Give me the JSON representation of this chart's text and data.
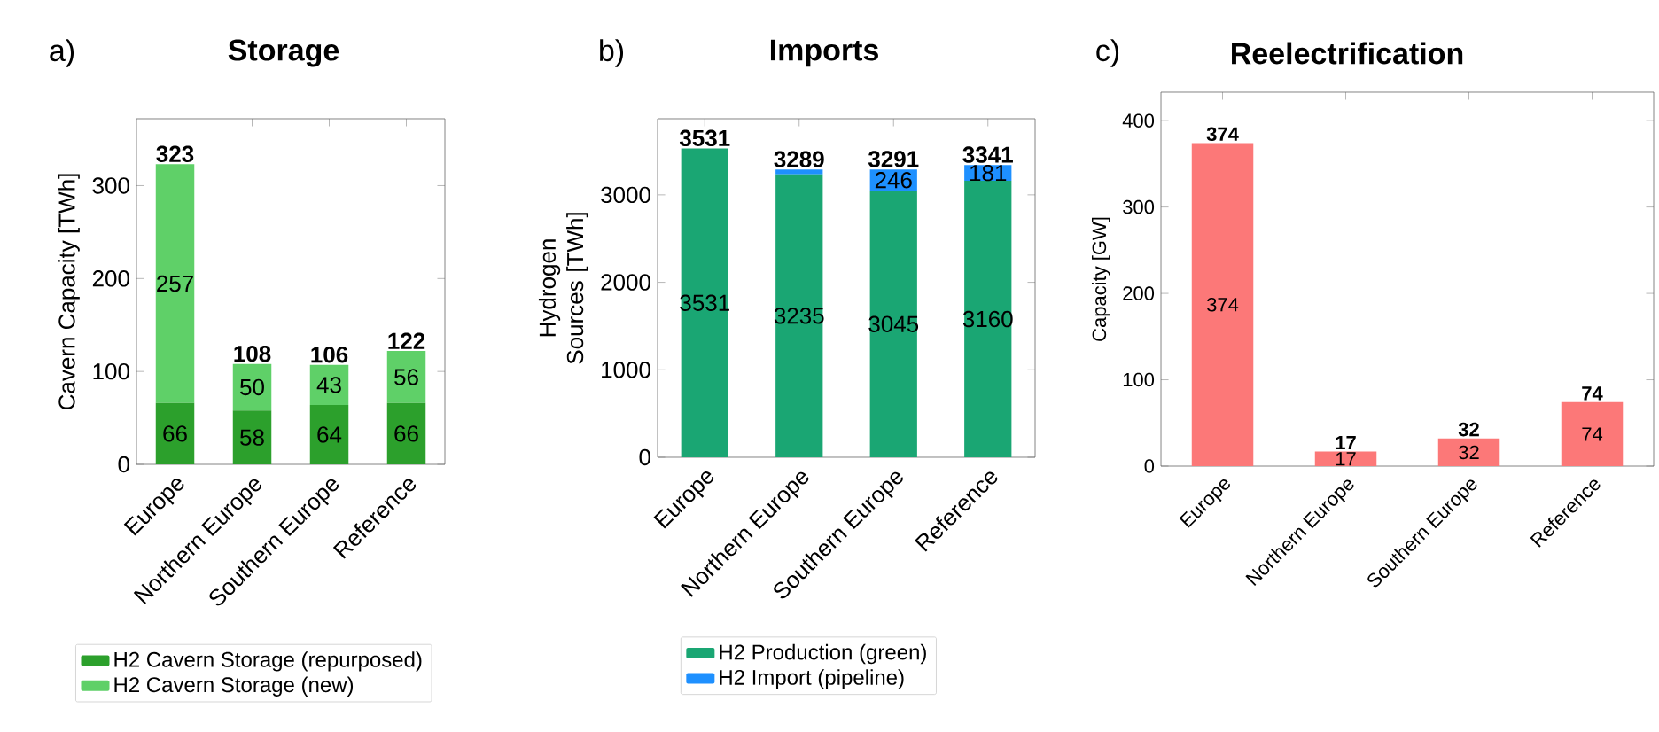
{
  "chart_data": [
    {
      "type": "bar",
      "title": "Storage",
      "annotations": [
        "a)"
      ],
      "ylabel": "Cavern Capacity [TWh]",
      "stacked": true,
      "legend": "bottom",
      "categories": [
        "Europe",
        "Northern Europe",
        "Southern Europe",
        "Reference"
      ],
      "series": [
        {
          "name": "H2 Cavern Storage (repurposed)",
          "color": "#2ca02c",
          "values": [
            66,
            58,
            64,
            66
          ],
          "value_labels": [
            "66",
            "58",
            "64",
            "66"
          ]
        },
        {
          "name": "H2 Cavern Storage (new)",
          "color": "#5fd068",
          "values": [
            257,
            50,
            43,
            56
          ],
          "value_labels": [
            "257",
            "50",
            "43",
            "56"
          ]
        }
      ],
      "totals": [
        "323",
        "108",
        "106",
        "122"
      ],
      "ylim": [
        0,
        372
      ],
      "yticks": [
        0,
        100,
        200,
        300
      ]
    },
    {
      "type": "bar",
      "title": "Imports",
      "annotations": [
        "b)"
      ],
      "ylabel": "Hydrogen Sources [TWh]",
      "stacked": true,
      "legend": "bottom",
      "categories": [
        "Europe",
        "Northern Europe",
        "Southern Europe",
        "Reference"
      ],
      "series": [
        {
          "name": "H2 Production (green)",
          "color": "#1aa673",
          "values": [
            3531,
            3235,
            3045,
            3160
          ],
          "value_labels": [
            "3531",
            "3235",
            "3045",
            "3160"
          ]
        },
        {
          "name": "H2 Import (pipeline)",
          "color": "#1e90ff",
          "values": [
            0,
            54,
            246,
            181
          ],
          "value_labels": [
            null,
            null,
            "246",
            "181"
          ]
        }
      ],
      "totals": [
        "3531",
        "3289",
        "3291",
        "3341"
      ],
      "ylim": [
        0,
        3870
      ],
      "yticks": [
        0,
        1000,
        2000,
        3000
      ]
    },
    {
      "type": "bar",
      "title": "Reelectrification",
      "annotations": [
        "c)"
      ],
      "ylabel": "Capacity [GW]",
      "categories": [
        "Europe",
        "Northern Europe",
        "Southern Europe",
        "Reference"
      ],
      "series": [
        {
          "color": "#fc7878",
          "values": [
            374,
            17,
            32,
            74
          ],
          "value_labels": [
            "374",
            "17",
            "32",
            "74"
          ]
        }
      ],
      "totals": [
        "374",
        "17",
        "32",
        "74"
      ],
      "ylim": [
        0,
        433
      ],
      "yticks": [
        0,
        100,
        200,
        300,
        400
      ]
    }
  ]
}
